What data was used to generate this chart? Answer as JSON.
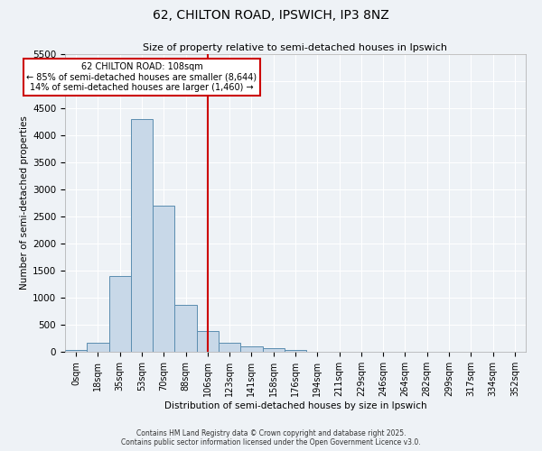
{
  "title_line1": "62, CHILTON ROAD, IPSWICH, IP3 8NZ",
  "title_line2": "Size of property relative to semi-detached houses in Ipswich",
  "xlabel": "Distribution of semi-detached houses by size in Ipswich",
  "ylabel": "Number of semi-detached properties",
  "bar_labels": [
    "0sqm",
    "18sqm",
    "35sqm",
    "53sqm",
    "70sqm",
    "88sqm",
    "106sqm",
    "123sqm",
    "141sqm",
    "158sqm",
    "176sqm",
    "194sqm",
    "211sqm",
    "229sqm",
    "246sqm",
    "264sqm",
    "282sqm",
    "299sqm",
    "317sqm",
    "334sqm",
    "352sqm"
  ],
  "bar_values": [
    30,
    160,
    1400,
    4300,
    2700,
    870,
    380,
    160,
    100,
    60,
    40,
    5,
    0,
    0,
    0,
    0,
    0,
    0,
    0,
    0,
    0
  ],
  "bar_color": "#c8d8e8",
  "bar_edge_color": "#5b8db0",
  "vline_x": 6,
  "vline_color": "#cc0000",
  "annotation_title": "62 CHILTON ROAD: 108sqm",
  "annotation_line2": "← 85% of semi-detached houses are smaller (8,644)",
  "annotation_line3": "14% of semi-detached houses are larger (1,460) →",
  "annotation_box_color": "#cc0000",
  "ylim": [
    0,
    5500
  ],
  "yticks": [
    0,
    500,
    1000,
    1500,
    2000,
    2500,
    3000,
    3500,
    4000,
    4500,
    5000,
    5500
  ],
  "footer_line1": "Contains HM Land Registry data © Crown copyright and database right 2025.",
  "footer_line2": "Contains public sector information licensed under the Open Government Licence v3.0.",
  "background_color": "#eef2f6",
  "plot_background_color": "#eef2f6",
  "grid_color": "#ffffff"
}
